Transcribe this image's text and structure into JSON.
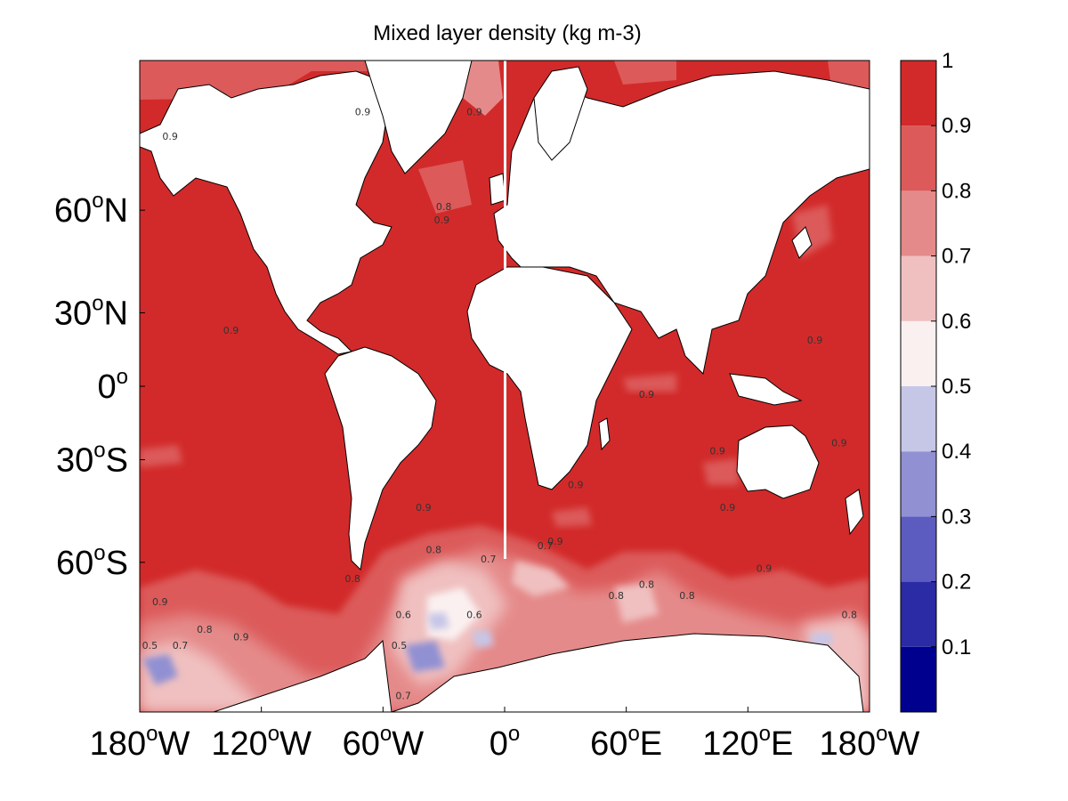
{
  "title": "Mixed layer density (kg m-3)",
  "chart_data": {
    "type": "heatmap",
    "title": "Mixed layer density (kg m-3)",
    "projection": "mercator",
    "xlim": [
      -180,
      180
    ],
    "ylim": [
      -80,
      80
    ],
    "x_ticks": [
      {
        "deg": "180",
        "suffix": "W",
        "lon": -180
      },
      {
        "deg": "120",
        "suffix": "W",
        "lon": -120
      },
      {
        "deg": "60",
        "suffix": "W",
        "lon": -60
      },
      {
        "deg": "0",
        "suffix": "",
        "lon": 0
      },
      {
        "deg": "60",
        "suffix": "E",
        "lon": 60
      },
      {
        "deg": "120",
        "suffix": "E",
        "lon": 120
      },
      {
        "deg": "180",
        "suffix": "W",
        "lon": 180
      }
    ],
    "y_ticks": [
      {
        "deg": "60",
        "suffix": "N",
        "lat": 60
      },
      {
        "deg": "30",
        "suffix": "N",
        "lat": 30
      },
      {
        "deg": "0",
        "suffix": "",
        "lat": 0
      },
      {
        "deg": "30",
        "suffix": "S",
        "lat": -30
      },
      {
        "deg": "60",
        "suffix": "S",
        "lat": -60
      }
    ],
    "colorbar": {
      "levels": [
        0,
        0.1,
        0.2,
        0.3,
        0.4,
        0.5,
        0.6,
        0.7,
        0.8,
        0.9,
        1.0
      ],
      "tick_labels": [
        "0.1",
        "0.2",
        "0.3",
        "0.4",
        "0.5",
        "0.6",
        "0.7",
        "0.8",
        "0.9",
        "1"
      ],
      "colors": [
        "#00008f",
        "#2b2ba6",
        "#5c5cc0",
        "#9090d3",
        "#c6c6e7",
        "#fbf0f0",
        "#f0c0c0",
        "#e58a8a",
        "#dc5a5a",
        "#d22a2a"
      ]
    },
    "contour_labels": [
      {
        "text": "0.9",
        "lon": -165,
        "lat": 72
      },
      {
        "text": "0.9",
        "lon": -135,
        "lat": 22
      },
      {
        "text": "0.9",
        "lon": -40,
        "lat": -47
      },
      {
        "text": "0.9",
        "lon": -170,
        "lat": -68
      },
      {
        "text": "0.9",
        "lon": -130,
        "lat": -73
      },
      {
        "text": "0.8",
        "lon": -35,
        "lat": -58
      },
      {
        "text": "0.8",
        "lon": -75,
        "lat": -64
      },
      {
        "text": "0.6",
        "lon": -50,
        "lat": -70
      },
      {
        "text": "0.6",
        "lon": -15,
        "lat": -70
      },
      {
        "text": "0.5",
        "lon": -52,
        "lat": -74
      },
      {
        "text": "0.5",
        "lon": -175,
        "lat": -74
      },
      {
        "text": "0.7",
        "lon": -160,
        "lat": -74
      },
      {
        "text": "0.8",
        "lon": -148,
        "lat": -72
      },
      {
        "text": "0.7",
        "lon": -8,
        "lat": -60
      },
      {
        "text": "0.9",
        "lon": 25,
        "lat": -56
      },
      {
        "text": "0.7",
        "lon": 20,
        "lat": -57
      },
      {
        "text": "0.9",
        "lon": 35,
        "lat": -40
      },
      {
        "text": "0.9",
        "lon": 70,
        "lat": -5
      },
      {
        "text": "0.9",
        "lon": 105,
        "lat": -28
      },
      {
        "text": "0.9",
        "lon": 110,
        "lat": -47
      },
      {
        "text": "0.8",
        "lon": 55,
        "lat": -67
      },
      {
        "text": "0.8",
        "lon": 70,
        "lat": -65
      },
      {
        "text": "0.8",
        "lon": 90,
        "lat": -67
      },
      {
        "text": "0.9",
        "lon": 128,
        "lat": -62
      },
      {
        "text": "0.8",
        "lon": 170,
        "lat": -70
      },
      {
        "text": "0.9",
        "lon": 153,
        "lat": 18
      },
      {
        "text": "0.9",
        "lon": 165,
        "lat": -25
      },
      {
        "text": "0.8",
        "lon": -30,
        "lat": 60
      },
      {
        "text": "0.9",
        "lon": -31,
        "lat": 57
      },
      {
        "text": "0.9",
        "lon": -15,
        "lat": 75
      },
      {
        "text": "0.9",
        "lon": -70,
        "lat": 75
      },
      {
        "text": "0.7",
        "lon": -50,
        "lat": -79
      }
    ]
  }
}
